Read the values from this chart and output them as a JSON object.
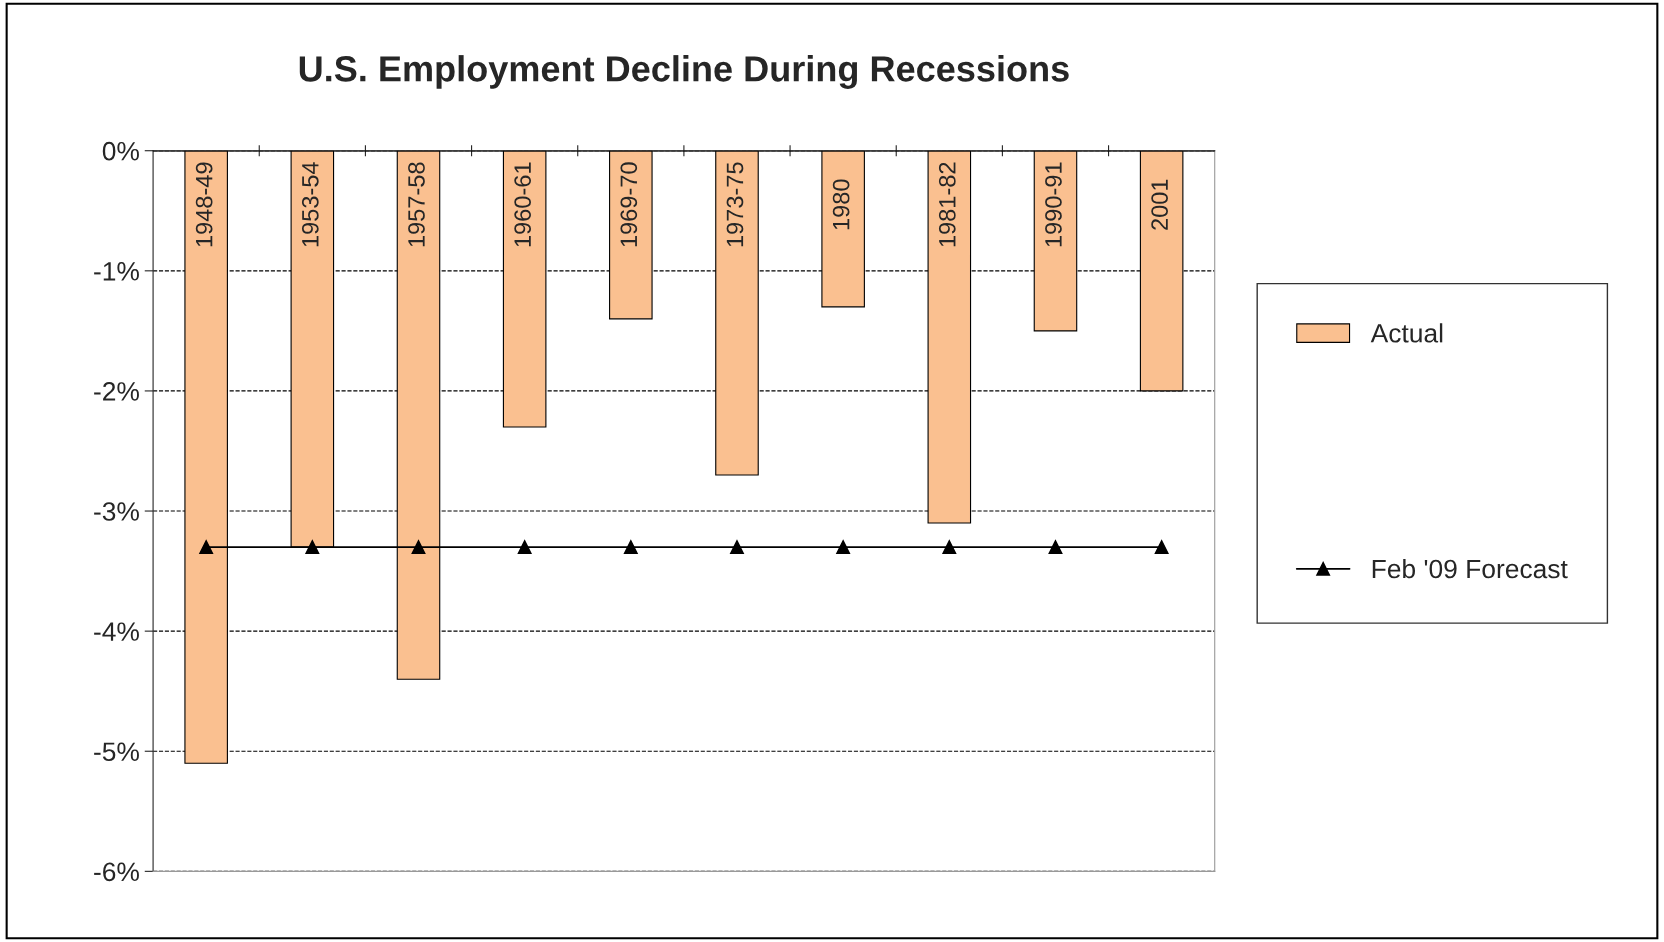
{
  "chart_data": {
    "type": "bar",
    "title": "U.S. Employment Decline During Recessions",
    "categories": [
      "1948-49",
      "1953-54",
      "1957-58",
      "1960-61",
      "1969-70",
      "1973-75",
      "1980",
      "1981-82",
      "1990-91",
      "2001"
    ],
    "series": [
      {
        "name": "Actual",
        "color": "#fac090",
        "values": [
          -5.1,
          -3.3,
          -4.4,
          -2.3,
          -1.4,
          -2.7,
          -1.3,
          -3.1,
          -1.5,
          -2.0
        ]
      },
      {
        "name": "Feb '09 Forecast",
        "type": "line",
        "color": "#000000",
        "marker": "triangle",
        "values": [
          -3.3,
          -3.3,
          -3.3,
          -3.3,
          -3.3,
          -3.3,
          -3.3,
          -3.3,
          -3.3,
          -3.3
        ]
      }
    ],
    "ylim": [
      -6,
      0
    ],
    "yticks": [
      {
        "value": -6,
        "label": "-6%"
      },
      {
        "value": -5,
        "label": "-5%"
      },
      {
        "value": -4,
        "label": "-4%"
      },
      {
        "value": -3,
        "label": "-3%"
      },
      {
        "value": -2,
        "label": "-2%"
      },
      {
        "value": -1,
        "label": "-1%"
      },
      {
        "value": 0,
        "label": "0%"
      }
    ],
    "grid": "y",
    "legend": "right"
  }
}
